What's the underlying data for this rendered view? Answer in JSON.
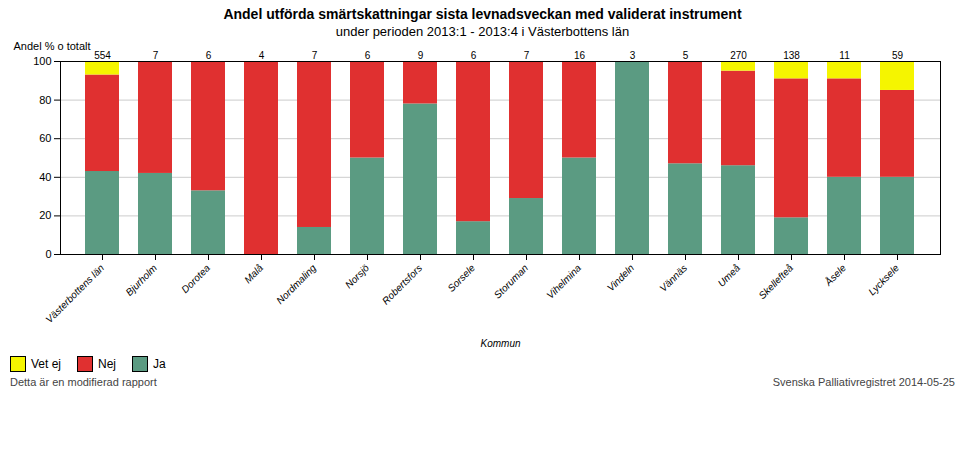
{
  "chart_data": {
    "type": "bar",
    "stacked": true,
    "title": "Andel utförda smärtskattningar sista levnadsveckan med validerat instrument",
    "subtitle": "under perioden 2013:1 - 2013:4 i Västerbottens län",
    "xlabel": "Kommun",
    "ylabel": "Andel % o totalt",
    "categories": [
      "Västerbottens län",
      "Bjurholm",
      "Dorotea",
      "Malå",
      "Nordmaling",
      "Norsjö",
      "Robertsfors",
      "Sorsele",
      "Storuman",
      "Vihelmina",
      "Vindeln",
      "Vännäs",
      "Umeå",
      "Skellefteå",
      "Åsele",
      "Lycksele"
    ],
    "series": [
      {
        "name": "Ja",
        "color": "#5B9B82",
        "values": [
          43,
          42,
          33,
          0,
          14,
          50,
          78,
          17,
          29,
          50,
          100,
          47,
          46,
          19,
          40,
          40
        ]
      },
      {
        "name": "Nej",
        "color": "#E03030",
        "values": [
          50,
          58,
          67,
          100,
          86,
          50,
          22,
          83,
          71,
          50,
          0,
          53,
          49,
          72,
          51,
          45
        ]
      },
      {
        "name": "Vet ej",
        "color": "#F5F500",
        "values": [
          7,
          0,
          0,
          0,
          0,
          0,
          0,
          0,
          0,
          0,
          0,
          0,
          5,
          9,
          9,
          15
        ]
      }
    ],
    "counts": [
      554,
      7,
      6,
      4,
      7,
      6,
      9,
      6,
      7,
      16,
      3,
      5,
      270,
      138,
      11,
      59
    ],
    "ylim": [
      0,
      100
    ],
    "yticks": [
      0,
      20,
      40,
      60,
      80,
      100
    ],
    "grid": true,
    "legend": "lower left",
    "annotations": [
      "Detta är en modifierad rapport",
      "Svenska Palliativregistret 2014-05-25"
    ]
  }
}
